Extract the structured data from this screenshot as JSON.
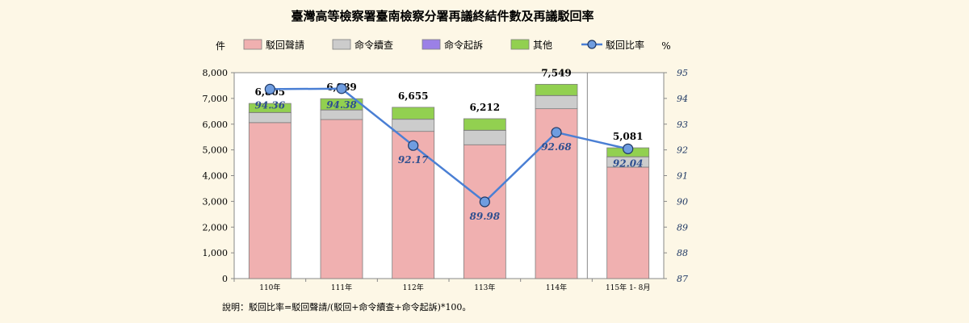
{
  "chart_data": {
    "type": "bar",
    "title": "臺灣高等檢察署臺南檢察分署再議終結件數及再議駁回率",
    "left_unit": "件",
    "right_unit": "%",
    "categories": [
      "110年",
      "111年",
      "112年",
      "113年",
      "114年",
      "115年 1- 8月"
    ],
    "series": [
      {
        "name": "駁回聲請",
        "color": "#f0b0b0",
        "values": [
          6060,
          6180,
          5720,
          5200,
          6600,
          4330
        ]
      },
      {
        "name": "命令續查",
        "color": "#cccccc",
        "values": [
          390,
          370,
          470,
          560,
          510,
          400
        ]
      },
      {
        "name": "命令起訴",
        "color": "#9b80e6",
        "values": [
          5,
          5,
          5,
          5,
          5,
          5
        ]
      },
      {
        "name": "其他",
        "color": "#92d050",
        "values": [
          350,
          434,
          460,
          447,
          434,
          346
        ]
      }
    ],
    "totals": [
      "6,805",
      "6,989",
      "6,655",
      "6,212",
      "7,549",
      "5,081"
    ],
    "rate_series": {
      "name": "駁回比率",
      "color": "#4a7fd4",
      "values": [
        94.36,
        94.38,
        92.17,
        89.98,
        92.68,
        92.04
      ]
    },
    "rate_labels": [
      "94.36",
      "94.38",
      "92.17",
      "89.98",
      "92.68",
      "92.04"
    ],
    "ylim_left": [
      0,
      8000
    ],
    "yticks_left": [
      "0",
      "1,000",
      "2,000",
      "3,000",
      "4,000",
      "5,000",
      "6,000",
      "7,000",
      "8,000"
    ],
    "ylim_right": [
      87,
      95
    ],
    "yticks_right": [
      "87",
      "88",
      "89",
      "90",
      "91",
      "92",
      "93",
      "94",
      "95"
    ],
    "grid": false,
    "legend_position": "top",
    "note": "說明：駁回比率=駁回聲請/(駁回+命令續查+命令起訴)*100。"
  }
}
